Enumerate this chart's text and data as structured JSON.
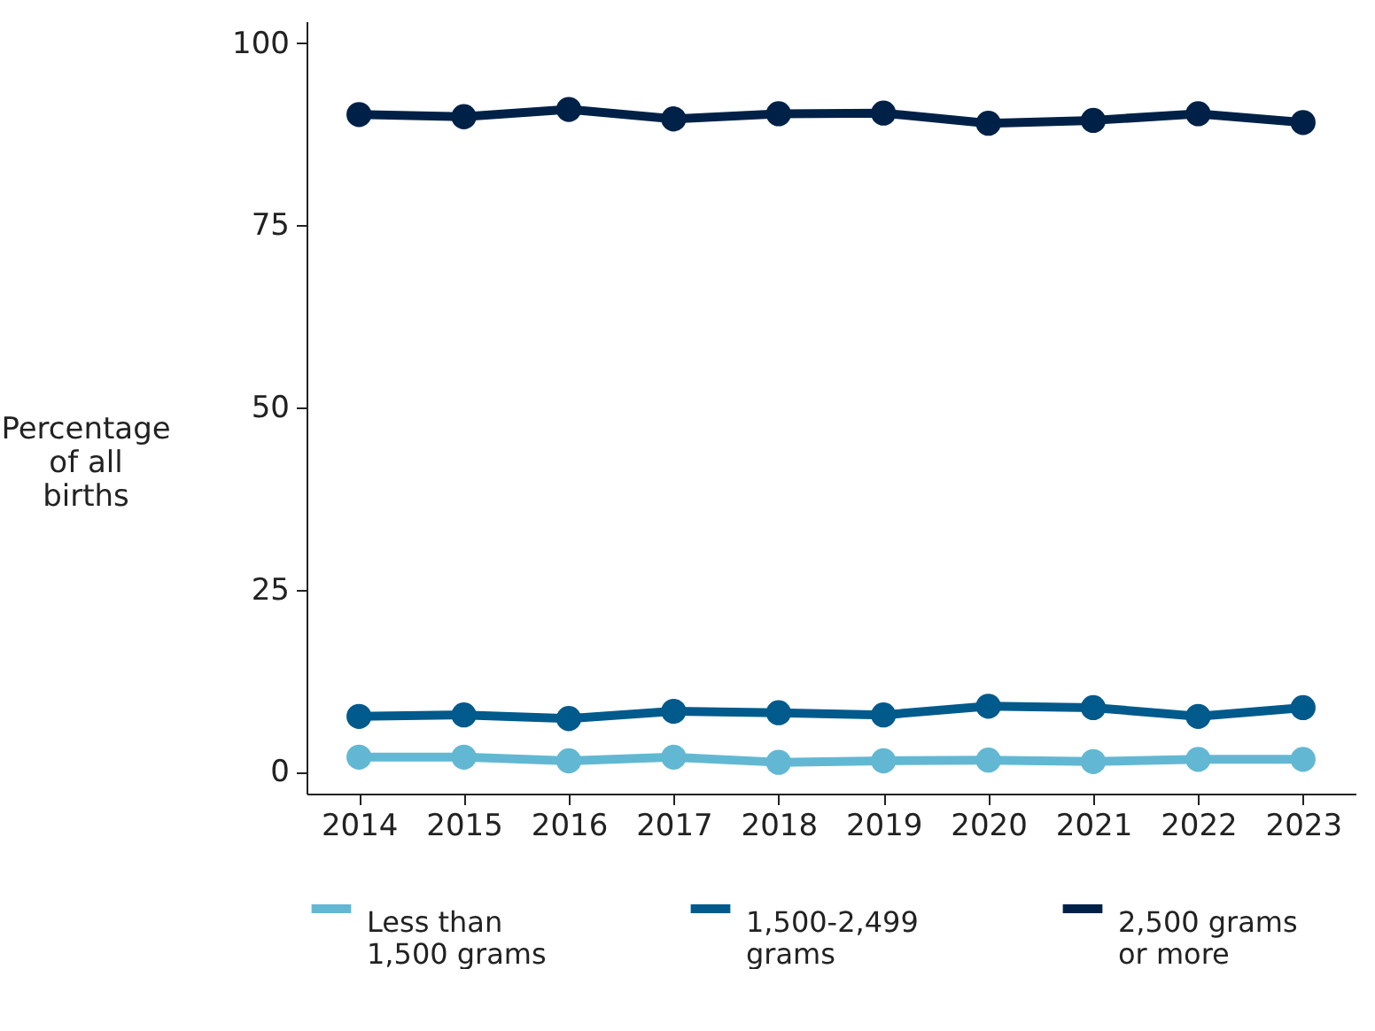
{
  "chart_data": {
    "type": "line",
    "ylabel": "Percentage of all births",
    "categories": [
      "2014",
      "2015",
      "2016",
      "2017",
      "2018",
      "2019",
      "2020",
      "2021",
      "2022",
      "2023"
    ],
    "series": [
      {
        "name": "Less than 1,500 grams",
        "color": "#62b8d3",
        "values": [
          2.0,
          2.0,
          1.5,
          2.0,
          1.3,
          1.5,
          1.6,
          1.4,
          1.7,
          1.7
        ]
      },
      {
        "name": "1,500-2,499 grams",
        "color": "#005a8c",
        "values": [
          7.6,
          7.8,
          7.3,
          8.3,
          8.1,
          7.8,
          9.0,
          8.8,
          7.6,
          8.8
        ]
      },
      {
        "name": "2,500 grams or more",
        "color": "#002147",
        "values": [
          90.2,
          89.9,
          90.9,
          89.6,
          90.3,
          90.4,
          89.0,
          89.4,
          90.3,
          89.1
        ]
      }
    ],
    "ylim": [
      -3,
      103
    ],
    "yticks": [
      0,
      25,
      50,
      75,
      100
    ],
    "grid": false,
    "legend": "bottom",
    "marker": "circle",
    "line_style": "solid"
  }
}
